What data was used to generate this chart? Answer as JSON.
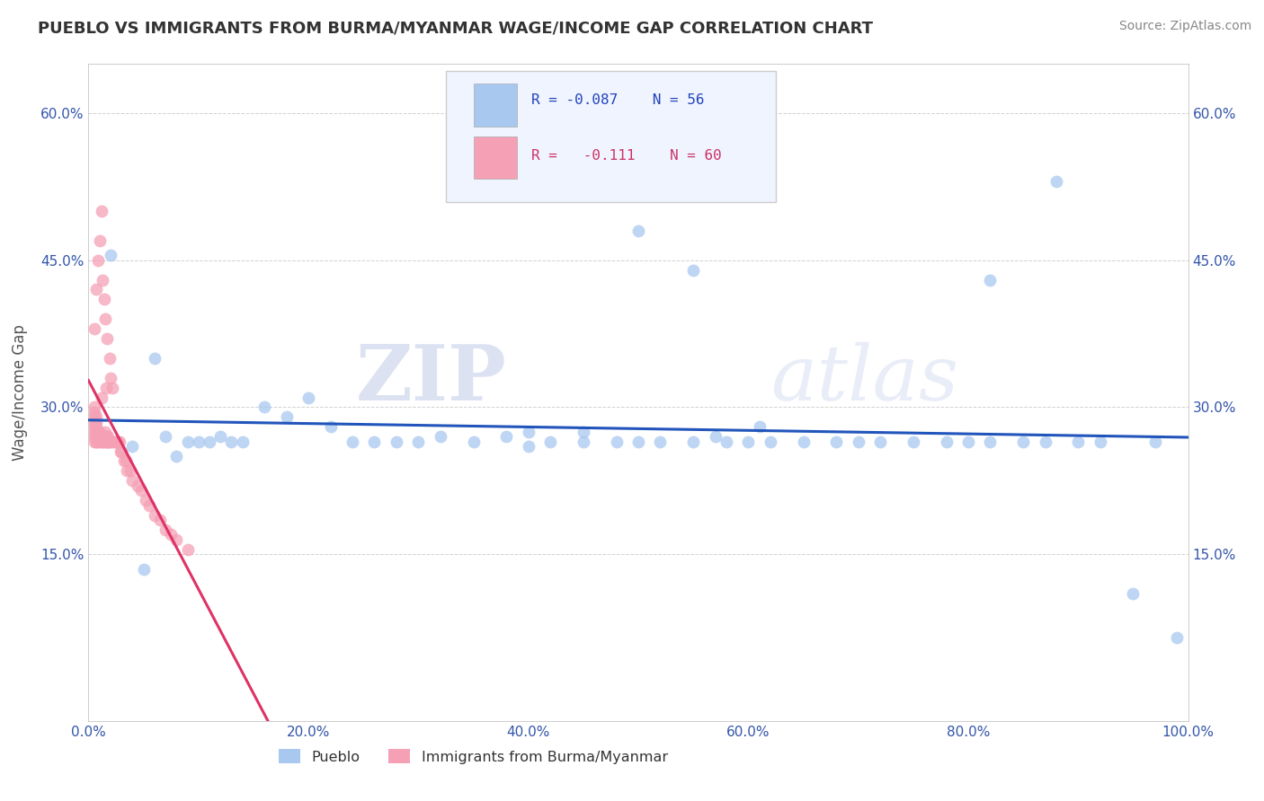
{
  "title": "PUEBLO VS IMMIGRANTS FROM BURMA/MYANMAR WAGE/INCOME GAP CORRELATION CHART",
  "source": "Source: ZipAtlas.com",
  "ylabel": "Wage/Income Gap",
  "xlim": [
    0.0,
    1.0
  ],
  "ylim": [
    -0.02,
    0.65
  ],
  "xticks": [
    0.0,
    0.2,
    0.4,
    0.6,
    0.8,
    1.0
  ],
  "xtick_labels": [
    "0.0%",
    "20.0%",
    "40.0%",
    "60.0%",
    "80.0%",
    "100.0%"
  ],
  "yticks": [
    0.15,
    0.3,
    0.45,
    0.6
  ],
  "ytick_labels": [
    "15.0%",
    "30.0%",
    "45.0%",
    "60.0%"
  ],
  "pueblo_color": "#a8c8f0",
  "burma_color": "#f5a0b5",
  "pueblo_line_color": "#2255bb",
  "burma_line_color": "#dd3366",
  "burma_dash_color": "#f5a0b5",
  "pueblo_R": "-0.087",
  "pueblo_N": "56",
  "burma_R": "-0.111",
  "burma_N": "60",
  "watermark_zip": "ZIP",
  "watermark_atlas": "atlas",
  "pueblo_x": [
    0.02,
    0.04,
    0.07,
    0.09,
    0.1,
    0.11,
    0.12,
    0.13,
    0.14,
    0.16,
    0.18,
    0.2,
    0.22,
    0.24,
    0.26,
    0.28,
    0.3,
    0.32,
    0.35,
    0.38,
    0.4,
    0.42,
    0.45,
    0.48,
    0.5,
    0.52,
    0.55,
    0.58,
    0.6,
    0.62,
    0.65,
    0.68,
    0.7,
    0.72,
    0.75,
    0.78,
    0.8,
    0.82,
    0.85,
    0.87,
    0.9,
    0.92,
    0.95,
    0.97,
    0.99,
    0.05,
    0.06,
    0.08,
    0.5,
    0.55,
    0.82,
    0.88,
    0.4,
    0.45,
    0.57,
    0.61
  ],
  "pueblo_y": [
    0.455,
    0.26,
    0.27,
    0.265,
    0.265,
    0.265,
    0.27,
    0.265,
    0.265,
    0.3,
    0.29,
    0.31,
    0.28,
    0.265,
    0.265,
    0.265,
    0.265,
    0.27,
    0.265,
    0.27,
    0.26,
    0.265,
    0.265,
    0.265,
    0.265,
    0.265,
    0.265,
    0.265,
    0.265,
    0.265,
    0.265,
    0.265,
    0.265,
    0.265,
    0.265,
    0.265,
    0.265,
    0.265,
    0.265,
    0.265,
    0.265,
    0.265,
    0.11,
    0.265,
    0.065,
    0.135,
    0.35,
    0.25,
    0.48,
    0.44,
    0.43,
    0.53,
    0.275,
    0.275,
    0.27,
    0.28
  ],
  "burma_x": [
    0.005,
    0.005,
    0.005,
    0.005,
    0.005,
    0.005,
    0.005,
    0.005,
    0.007,
    0.007,
    0.007,
    0.007,
    0.007,
    0.007,
    0.008,
    0.008,
    0.008,
    0.01,
    0.01,
    0.01,
    0.012,
    0.012,
    0.012,
    0.013,
    0.013,
    0.015,
    0.015,
    0.015,
    0.016,
    0.016,
    0.016,
    0.017,
    0.017,
    0.018,
    0.018,
    0.019,
    0.02,
    0.022,
    0.024,
    0.025,
    0.026,
    0.027,
    0.028,
    0.029,
    0.03,
    0.032,
    0.034,
    0.035,
    0.038,
    0.04,
    0.045,
    0.048,
    0.052,
    0.055,
    0.06,
    0.065,
    0.07,
    0.075,
    0.08,
    0.09
  ],
  "burma_y": [
    0.265,
    0.27,
    0.275,
    0.28,
    0.285,
    0.29,
    0.295,
    0.3,
    0.265,
    0.27,
    0.275,
    0.28,
    0.285,
    0.29,
    0.265,
    0.27,
    0.275,
    0.265,
    0.27,
    0.275,
    0.265,
    0.27,
    0.31,
    0.265,
    0.27,
    0.265,
    0.27,
    0.275,
    0.265,
    0.27,
    0.32,
    0.265,
    0.27,
    0.265,
    0.27,
    0.265,
    0.265,
    0.265,
    0.265,
    0.265,
    0.265,
    0.265,
    0.265,
    0.255,
    0.255,
    0.245,
    0.245,
    0.235,
    0.235,
    0.225,
    0.22,
    0.215,
    0.205,
    0.2,
    0.19,
    0.185,
    0.175,
    0.17,
    0.165,
    0.155
  ],
  "burma_high_x": [
    0.005,
    0.007,
    0.009,
    0.01,
    0.012,
    0.013,
    0.014,
    0.015,
    0.017,
    0.019,
    0.02,
    0.022
  ],
  "burma_high_y": [
    0.38,
    0.42,
    0.45,
    0.47,
    0.5,
    0.43,
    0.41,
    0.39,
    0.37,
    0.35,
    0.33,
    0.32
  ]
}
